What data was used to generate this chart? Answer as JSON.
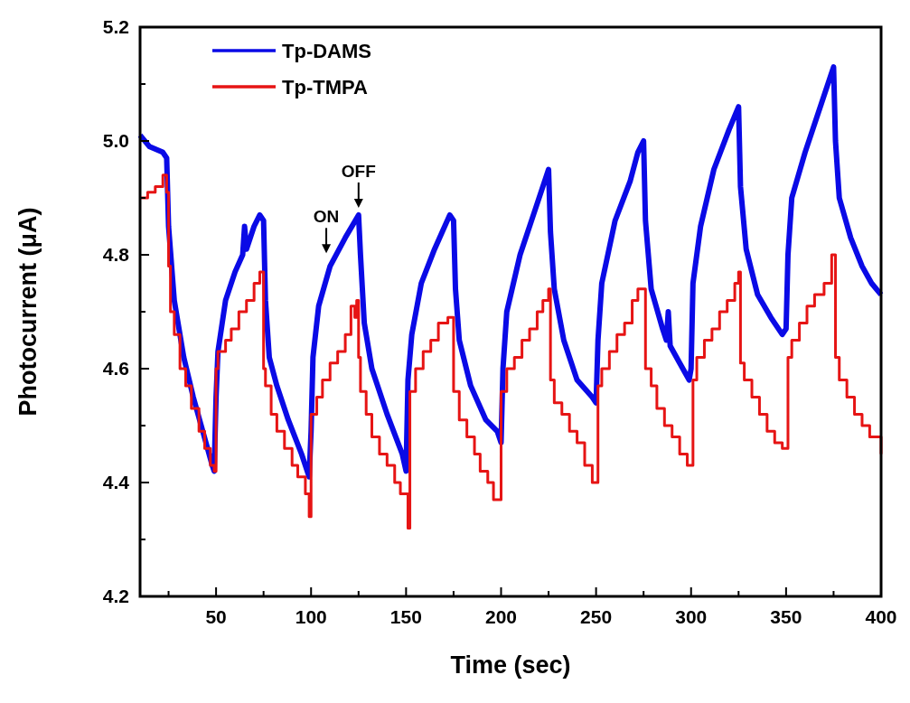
{
  "chart_data": {
    "type": "line",
    "xlabel": "Time (sec)",
    "ylabel": "Photocurrent (μA)",
    "xlim": [
      10,
      400
    ],
    "ylim": [
      4.2,
      5.2
    ],
    "xticks": [
      {
        "value": 25,
        "label": null
      },
      50,
      {
        "value": 75,
        "label": null
      },
      100,
      {
        "value": 125,
        "label": null
      },
      150,
      {
        "value": 175,
        "label": null
      },
      200,
      {
        "value": 225,
        "label": null
      },
      250,
      {
        "value": 275,
        "label": null
      },
      300,
      {
        "value": 325,
        "label": null
      },
      350,
      {
        "value": 375,
        "label": null
      },
      400
    ],
    "yticks": [
      {
        "value": 4.2,
        "label": "4.2"
      },
      {
        "value": 4.3,
        "label": null
      },
      {
        "value": 4.4,
        "label": "4.4"
      },
      {
        "value": 4.5,
        "label": null
      },
      {
        "value": 4.6,
        "label": "4.6"
      },
      {
        "value": 4.7,
        "label": null
      },
      {
        "value": 4.8,
        "label": "4.8"
      },
      {
        "value": 4.9,
        "label": null
      },
      {
        "value": 5.0,
        "label": "5.0"
      },
      {
        "value": 5.1,
        "label": null
      },
      {
        "value": 5.2,
        "label": "5.2"
      }
    ],
    "legend": "top left",
    "grid": false,
    "marker": "none",
    "line_style": "solid",
    "annotations": [
      {
        "text": "ON",
        "x": 108,
        "y": 4.79
      },
      {
        "text": "OFF",
        "x": 125,
        "y": 4.87
      }
    ],
    "series": [
      {
        "name": "Tp-DAMS",
        "color": "#0a0ae6",
        "x": [
          10,
          15,
          22,
          24,
          25,
          28,
          33,
          38,
          43,
          48,
          49,
          50,
          51,
          55,
          60,
          64,
          65,
          66,
          70,
          73,
          75,
          76,
          78,
          82,
          88,
          95,
          99,
          100,
          101,
          104,
          110,
          118,
          125,
          126,
          128,
          132,
          140,
          148,
          150,
          151,
          153,
          158,
          165,
          173,
          175,
          176,
          178,
          184,
          192,
          198,
          200,
          201,
          203,
          210,
          218,
          225,
          226,
          228,
          233,
          240,
          248,
          250,
          251,
          253,
          260,
          268,
          272,
          275,
          276,
          279,
          285,
          287,
          288,
          289,
          294,
          299,
          300,
          301,
          305,
          312,
          320,
          325,
          326,
          329,
          335,
          342,
          348,
          350,
          351,
          353,
          360,
          368,
          375,
          376,
          378,
          384,
          390,
          395,
          400
        ],
        "values": [
          5.01,
          4.99,
          4.98,
          4.97,
          4.85,
          4.72,
          4.62,
          4.55,
          4.49,
          4.43,
          4.42,
          4.55,
          4.63,
          4.72,
          4.77,
          4.8,
          4.85,
          4.81,
          4.85,
          4.87,
          4.86,
          4.72,
          4.62,
          4.57,
          4.51,
          4.45,
          4.41,
          4.49,
          4.62,
          4.71,
          4.78,
          4.83,
          4.87,
          4.8,
          4.68,
          4.6,
          4.52,
          4.45,
          4.42,
          4.58,
          4.66,
          4.75,
          4.81,
          4.87,
          4.86,
          4.74,
          4.65,
          4.57,
          4.51,
          4.49,
          4.47,
          4.6,
          4.7,
          4.8,
          4.88,
          4.95,
          4.84,
          4.74,
          4.65,
          4.58,
          4.55,
          4.54,
          4.65,
          4.75,
          4.86,
          4.93,
          4.98,
          5.0,
          4.86,
          4.74,
          4.67,
          4.65,
          4.7,
          4.64,
          4.61,
          4.58,
          4.6,
          4.75,
          4.85,
          4.95,
          5.02,
          5.06,
          4.92,
          4.81,
          4.73,
          4.69,
          4.66,
          4.67,
          4.8,
          4.9,
          4.98,
          5.06,
          5.13,
          5.0,
          4.9,
          4.83,
          4.78,
          4.75,
          4.73
        ]
      },
      {
        "name": "Tp-TMPA",
        "color": "#e61414",
        "type": "step",
        "x": [
          10,
          14,
          18,
          22,
          24,
          25,
          26,
          28,
          31,
          34,
          37,
          41,
          44,
          47,
          49,
          50,
          51,
          55,
          58,
          62,
          66,
          70,
          73,
          75,
          76,
          79,
          82,
          86,
          90,
          93,
          97,
          99,
          100,
          103,
          106,
          110,
          114,
          118,
          121,
          123,
          124,
          125,
          126,
          129,
          132,
          136,
          140,
          144,
          147,
          151,
          152,
          155,
          159,
          163,
          167,
          172,
          175,
          178,
          182,
          186,
          189,
          193,
          196,
          200,
          203,
          207,
          211,
          215,
          219,
          222,
          225,
          226,
          228,
          232,
          236,
          240,
          244,
          248,
          250,
          251,
          253,
          257,
          261,
          265,
          269,
          272,
          275,
          276,
          279,
          282,
          286,
          290,
          294,
          298,
          300,
          301,
          303,
          307,
          311,
          315,
          319,
          323,
          325,
          326,
          328,
          332,
          336,
          340,
          344,
          348,
          350,
          351,
          353,
          357,
          361,
          365,
          370,
          374,
          376,
          378,
          382,
          386,
          390,
          394,
          398,
          400
        ],
        "values": [
          4.9,
          4.91,
          4.92,
          4.94,
          4.91,
          4.78,
          4.7,
          4.66,
          4.6,
          4.57,
          4.53,
          4.49,
          4.46,
          4.43,
          4.42,
          4.6,
          4.63,
          4.65,
          4.67,
          4.7,
          4.72,
          4.75,
          4.77,
          4.6,
          4.57,
          4.52,
          4.49,
          4.46,
          4.43,
          4.41,
          4.38,
          4.34,
          4.52,
          4.55,
          4.58,
          4.61,
          4.63,
          4.66,
          4.71,
          4.69,
          4.72,
          4.62,
          4.56,
          4.52,
          4.48,
          4.45,
          4.43,
          4.4,
          4.38,
          4.32,
          4.56,
          4.6,
          4.63,
          4.65,
          4.68,
          4.69,
          4.56,
          4.51,
          4.48,
          4.45,
          4.42,
          4.4,
          4.37,
          4.56,
          4.6,
          4.62,
          4.65,
          4.67,
          4.7,
          4.72,
          4.74,
          4.58,
          4.54,
          4.52,
          4.49,
          4.47,
          4.43,
          4.4,
          4.4,
          4.57,
          4.6,
          4.63,
          4.66,
          4.68,
          4.72,
          4.74,
          4.74,
          4.6,
          4.57,
          4.53,
          4.5,
          4.48,
          4.45,
          4.43,
          4.43,
          4.58,
          4.62,
          4.65,
          4.67,
          4.7,
          4.72,
          4.75,
          4.77,
          4.61,
          4.58,
          4.55,
          4.52,
          4.49,
          4.47,
          4.46,
          4.46,
          4.62,
          4.65,
          4.68,
          4.71,
          4.73,
          4.75,
          4.8,
          4.62,
          4.58,
          4.55,
          4.52,
          4.5,
          4.48,
          4.48,
          4.45
        ]
      }
    ]
  }
}
